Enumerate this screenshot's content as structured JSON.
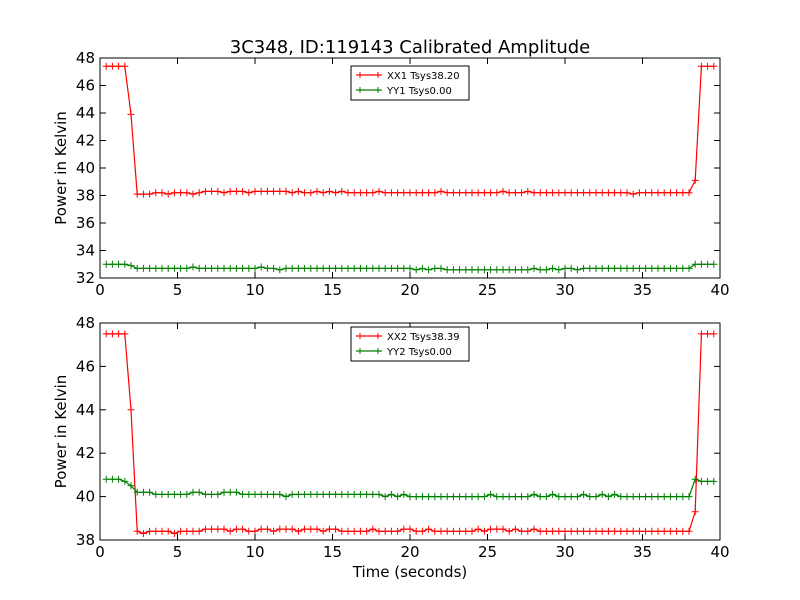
{
  "figure": {
    "title": "3C348, ID:119143 Calibrated Amplitude"
  },
  "colors": {
    "xx": "#ff0000",
    "yy": "#008000",
    "axes": "#000000",
    "background": "#ffffff"
  },
  "chart_data": [
    {
      "type": "line",
      "title": "3C348, ID:119143 Calibrated Amplitude",
      "xlabel": "",
      "ylabel": "Power in Kelvin",
      "xlim": [
        0,
        40
      ],
      "ylim": [
        32,
        48
      ],
      "xticks": [
        0,
        5,
        10,
        15,
        20,
        25,
        30,
        35,
        40
      ],
      "yticks": [
        32,
        34,
        36,
        38,
        40,
        42,
        44,
        46,
        48
      ],
      "grid": false,
      "legend_position": "top-center",
      "marker": "plus",
      "series": [
        {
          "name": "XX1 Tsys38.20",
          "color": "#ff0000",
          "x": [
            0.4,
            0.8,
            1.2,
            1.6,
            2.0,
            2.4,
            2.8,
            3.2,
            3.6,
            4.0,
            4.4,
            4.8,
            5.2,
            5.6,
            6.0,
            6.4,
            6.8,
            7.2,
            7.6,
            8.0,
            8.4,
            8.8,
            9.2,
            9.6,
            10.0,
            10.4,
            10.8,
            11.2,
            11.6,
            12.0,
            12.4,
            12.8,
            13.2,
            13.6,
            14.0,
            14.4,
            14.8,
            15.2,
            15.6,
            16.0,
            16.4,
            16.8,
            17.2,
            17.6,
            18.0,
            18.4,
            18.8,
            19.2,
            19.6,
            20.0,
            20.4,
            20.8,
            21.2,
            21.6,
            22.0,
            22.4,
            22.8,
            23.2,
            23.6,
            24.0,
            24.4,
            24.8,
            25.2,
            25.6,
            26.0,
            26.4,
            26.8,
            27.2,
            27.6,
            28.0,
            28.4,
            28.8,
            29.2,
            29.6,
            30.0,
            30.4,
            30.8,
            31.2,
            31.6,
            32.0,
            32.4,
            32.8,
            33.2,
            33.6,
            34.0,
            34.4,
            34.8,
            35.2,
            35.6,
            36.0,
            36.4,
            36.8,
            37.2,
            37.6,
            38.0,
            38.4,
            38.8,
            39.2,
            39.6
          ],
          "y": [
            47.4,
            47.4,
            47.4,
            47.4,
            43.9,
            38.1,
            38.1,
            38.1,
            38.2,
            38.2,
            38.1,
            38.2,
            38.2,
            38.2,
            38.1,
            38.2,
            38.3,
            38.3,
            38.3,
            38.2,
            38.3,
            38.3,
            38.3,
            38.2,
            38.3,
            38.3,
            38.3,
            38.3,
            38.3,
            38.3,
            38.2,
            38.3,
            38.2,
            38.2,
            38.3,
            38.2,
            38.3,
            38.2,
            38.3,
            38.2,
            38.2,
            38.2,
            38.2,
            38.2,
            38.3,
            38.2,
            38.2,
            38.2,
            38.2,
            38.2,
            38.2,
            38.2,
            38.2,
            38.2,
            38.3,
            38.2,
            38.2,
            38.2,
            38.2,
            38.2,
            38.2,
            38.2,
            38.2,
            38.2,
            38.3,
            38.2,
            38.2,
            38.2,
            38.3,
            38.2,
            38.2,
            38.2,
            38.2,
            38.2,
            38.2,
            38.2,
            38.2,
            38.2,
            38.2,
            38.2,
            38.2,
            38.2,
            38.2,
            38.2,
            38.2,
            38.1,
            38.2,
            38.2,
            38.2,
            38.2,
            38.2,
            38.2,
            38.2,
            38.2,
            38.2,
            39.1,
            47.4,
            47.4,
            47.4
          ]
        },
        {
          "name": "YY1 Tsys0.00",
          "color": "#008000",
          "x": [
            0.4,
            0.8,
            1.2,
            1.6,
            2.0,
            2.4,
            2.8,
            3.2,
            3.6,
            4.0,
            4.4,
            4.8,
            5.2,
            5.6,
            6.0,
            6.4,
            6.8,
            7.2,
            7.6,
            8.0,
            8.4,
            8.8,
            9.2,
            9.6,
            10.0,
            10.4,
            10.8,
            11.2,
            11.6,
            12.0,
            12.4,
            12.8,
            13.2,
            13.6,
            14.0,
            14.4,
            14.8,
            15.2,
            15.6,
            16.0,
            16.4,
            16.8,
            17.2,
            17.6,
            18.0,
            18.4,
            18.8,
            19.2,
            19.6,
            20.0,
            20.4,
            20.8,
            21.2,
            21.6,
            22.0,
            22.4,
            22.8,
            23.2,
            23.6,
            24.0,
            24.4,
            24.8,
            25.2,
            25.6,
            26.0,
            26.4,
            26.8,
            27.2,
            27.6,
            28.0,
            28.4,
            28.8,
            29.2,
            29.6,
            30.0,
            30.4,
            30.8,
            31.2,
            31.6,
            32.0,
            32.4,
            32.8,
            33.2,
            33.6,
            34.0,
            34.4,
            34.8,
            35.2,
            35.6,
            36.0,
            36.4,
            36.8,
            37.2,
            37.6,
            38.0,
            38.4,
            38.8,
            39.2,
            39.6
          ],
          "y": [
            33.0,
            33.0,
            33.0,
            33.0,
            32.9,
            32.7,
            32.7,
            32.7,
            32.7,
            32.7,
            32.7,
            32.7,
            32.7,
            32.7,
            32.8,
            32.7,
            32.7,
            32.7,
            32.7,
            32.7,
            32.7,
            32.7,
            32.7,
            32.7,
            32.7,
            32.8,
            32.7,
            32.7,
            32.6,
            32.7,
            32.7,
            32.7,
            32.7,
            32.7,
            32.7,
            32.7,
            32.7,
            32.7,
            32.7,
            32.7,
            32.7,
            32.7,
            32.7,
            32.7,
            32.7,
            32.7,
            32.7,
            32.7,
            32.7,
            32.7,
            32.6,
            32.7,
            32.6,
            32.7,
            32.7,
            32.6,
            32.6,
            32.6,
            32.6,
            32.6,
            32.6,
            32.6,
            32.6,
            32.6,
            32.6,
            32.6,
            32.6,
            32.6,
            32.6,
            32.7,
            32.6,
            32.6,
            32.7,
            32.6,
            32.7,
            32.7,
            32.6,
            32.7,
            32.7,
            32.7,
            32.7,
            32.7,
            32.7,
            32.7,
            32.7,
            32.7,
            32.7,
            32.7,
            32.7,
            32.7,
            32.7,
            32.7,
            32.7,
            32.7,
            32.7,
            33.0,
            33.0,
            33.0,
            33.0
          ]
        }
      ]
    },
    {
      "type": "line",
      "title": "",
      "xlabel": "Time (seconds)",
      "ylabel": "Power in Kelvin",
      "xlim": [
        0,
        40
      ],
      "ylim": [
        38,
        48
      ],
      "xticks": [
        0,
        5,
        10,
        15,
        20,
        25,
        30,
        35,
        40
      ],
      "yticks": [
        38,
        40,
        42,
        44,
        46,
        48
      ],
      "grid": false,
      "legend_position": "top-center",
      "marker": "plus",
      "series": [
        {
          "name": "XX2 Tsys38.39",
          "color": "#ff0000",
          "x": [
            0.4,
            0.8,
            1.2,
            1.6,
            2.0,
            2.4,
            2.8,
            3.2,
            3.6,
            4.0,
            4.4,
            4.8,
            5.2,
            5.6,
            6.0,
            6.4,
            6.8,
            7.2,
            7.6,
            8.0,
            8.4,
            8.8,
            9.2,
            9.6,
            10.0,
            10.4,
            10.8,
            11.2,
            11.6,
            12.0,
            12.4,
            12.8,
            13.2,
            13.6,
            14.0,
            14.4,
            14.8,
            15.2,
            15.6,
            16.0,
            16.4,
            16.8,
            17.2,
            17.6,
            18.0,
            18.4,
            18.8,
            19.2,
            19.6,
            20.0,
            20.4,
            20.8,
            21.2,
            21.6,
            22.0,
            22.4,
            22.8,
            23.2,
            23.6,
            24.0,
            24.4,
            24.8,
            25.2,
            25.6,
            26.0,
            26.4,
            26.8,
            27.2,
            27.6,
            28.0,
            28.4,
            28.8,
            29.2,
            29.6,
            30.0,
            30.4,
            30.8,
            31.2,
            31.6,
            32.0,
            32.4,
            32.8,
            33.2,
            33.6,
            34.0,
            34.4,
            34.8,
            35.2,
            35.6,
            36.0,
            36.4,
            36.8,
            37.2,
            37.6,
            38.0,
            38.4,
            38.8,
            39.2,
            39.6
          ],
          "y": [
            47.5,
            47.5,
            47.5,
            47.5,
            44.0,
            38.4,
            38.3,
            38.4,
            38.4,
            38.4,
            38.4,
            38.3,
            38.4,
            38.4,
            38.4,
            38.4,
            38.5,
            38.5,
            38.5,
            38.5,
            38.4,
            38.5,
            38.5,
            38.4,
            38.4,
            38.5,
            38.5,
            38.4,
            38.5,
            38.5,
            38.5,
            38.4,
            38.5,
            38.5,
            38.5,
            38.4,
            38.5,
            38.5,
            38.4,
            38.4,
            38.4,
            38.4,
            38.4,
            38.5,
            38.4,
            38.4,
            38.4,
            38.4,
            38.5,
            38.5,
            38.4,
            38.4,
            38.5,
            38.4,
            38.4,
            38.4,
            38.4,
            38.4,
            38.4,
            38.4,
            38.5,
            38.4,
            38.5,
            38.5,
            38.5,
            38.4,
            38.5,
            38.4,
            38.4,
            38.5,
            38.4,
            38.4,
            38.4,
            38.4,
            38.4,
            38.4,
            38.4,
            38.4,
            38.4,
            38.4,
            38.4,
            38.4,
            38.4,
            38.4,
            38.4,
            38.4,
            38.4,
            38.4,
            38.4,
            38.4,
            38.4,
            38.4,
            38.4,
            38.4,
            38.4,
            39.3,
            47.5,
            47.5,
            47.5
          ]
        },
        {
          "name": "YY2 Tsys0.00",
          "color": "#008000",
          "x": [
            0.4,
            0.8,
            1.2,
            1.6,
            2.0,
            2.4,
            2.8,
            3.2,
            3.6,
            4.0,
            4.4,
            4.8,
            5.2,
            5.6,
            6.0,
            6.4,
            6.8,
            7.2,
            7.6,
            8.0,
            8.4,
            8.8,
            9.2,
            9.6,
            10.0,
            10.4,
            10.8,
            11.2,
            11.6,
            12.0,
            12.4,
            12.8,
            13.2,
            13.6,
            14.0,
            14.4,
            14.8,
            15.2,
            15.6,
            16.0,
            16.4,
            16.8,
            17.2,
            17.6,
            18.0,
            18.4,
            18.8,
            19.2,
            19.6,
            20.0,
            20.4,
            20.8,
            21.2,
            21.6,
            22.0,
            22.4,
            22.8,
            23.2,
            23.6,
            24.0,
            24.4,
            24.8,
            25.2,
            25.6,
            26.0,
            26.4,
            26.8,
            27.2,
            27.6,
            28.0,
            28.4,
            28.8,
            29.2,
            29.6,
            30.0,
            30.4,
            30.8,
            31.2,
            31.6,
            32.0,
            32.4,
            32.8,
            33.2,
            33.6,
            34.0,
            34.4,
            34.8,
            35.2,
            35.6,
            36.0,
            36.4,
            36.8,
            37.2,
            37.6,
            38.0,
            38.4,
            38.8,
            39.2,
            39.6
          ],
          "y": [
            40.8,
            40.8,
            40.8,
            40.7,
            40.5,
            40.2,
            40.2,
            40.2,
            40.1,
            40.1,
            40.1,
            40.1,
            40.1,
            40.1,
            40.2,
            40.2,
            40.1,
            40.1,
            40.1,
            40.2,
            40.2,
            40.2,
            40.1,
            40.1,
            40.1,
            40.1,
            40.1,
            40.1,
            40.1,
            40.0,
            40.1,
            40.1,
            40.1,
            40.1,
            40.1,
            40.1,
            40.1,
            40.1,
            40.1,
            40.1,
            40.1,
            40.1,
            40.1,
            40.1,
            40.1,
            40.0,
            40.1,
            40.0,
            40.1,
            40.0,
            40.0,
            40.0,
            40.0,
            40.0,
            40.0,
            40.0,
            40.0,
            40.0,
            40.0,
            40.0,
            40.0,
            40.0,
            40.1,
            40.0,
            40.0,
            40.0,
            40.0,
            40.0,
            40.0,
            40.1,
            40.0,
            40.0,
            40.1,
            40.0,
            40.0,
            40.0,
            40.0,
            40.1,
            40.0,
            40.0,
            40.1,
            40.0,
            40.1,
            40.0,
            40.0,
            40.0,
            40.0,
            40.0,
            40.0,
            40.0,
            40.0,
            40.0,
            40.0,
            40.0,
            40.0,
            40.8,
            40.7,
            40.7,
            40.7
          ]
        }
      ]
    }
  ]
}
